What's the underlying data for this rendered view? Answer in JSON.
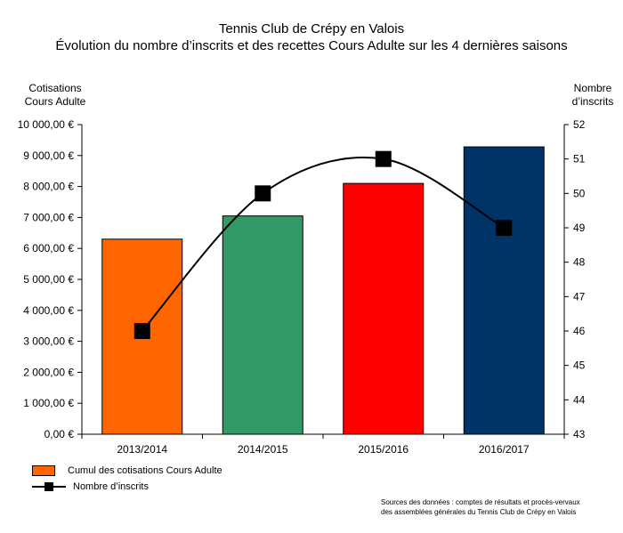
{
  "chart_data": {
    "type": "bar+line",
    "title": "Tennis Club de Crépy en Valois",
    "subtitle": "Évolution du nombre d’inscrits et des recettes Cours Adulte sur les 4 dernières saisons",
    "y_left_label_line1": "Cotisations",
    "y_left_label_line2": "Cours Adulte",
    "y_right_label_line1": "Nombre",
    "y_right_label_line2": "d’inscrits",
    "categories": [
      "2013/2014",
      "2014/2015",
      "2015/2016",
      "2016/2017"
    ],
    "bar_series": {
      "name": "Cumul des cotisations Cours Adulte",
      "values": [
        6300,
        7050,
        8100,
        9280
      ],
      "colors": [
        "#ff6600",
        "#339966",
        "#ff0000",
        "#003366"
      ]
    },
    "line_series": {
      "name": "Nombre d’inscrits",
      "values": [
        46,
        50,
        51,
        49
      ],
      "color": "#000000"
    },
    "y_left_lim": [
      0,
      10000
    ],
    "y_left_step": 1000,
    "y_left_ticks": [
      "0,00 €",
      "1 000,00 €",
      "2 000,00 €",
      "3 000,00 €",
      "4 000,00 €",
      "5 000,00 €",
      "6 000,00 €",
      "7 000,00 €",
      "8 000,00 €",
      "9 000,00 €",
      "10 000,00 €"
    ],
    "y_right_lim": [
      43,
      52
    ],
    "y_right_ticks": [
      "43",
      "44",
      "45",
      "46",
      "47",
      "48",
      "49",
      "50",
      "51",
      "52"
    ],
    "grid": false,
    "legend_position": "bottom-left"
  },
  "source_line1": "Sources des données : comptes de résultats et procès-vervaux",
  "source_line2": "des assemblées générales du Tennis Club de Crépy en Valois"
}
